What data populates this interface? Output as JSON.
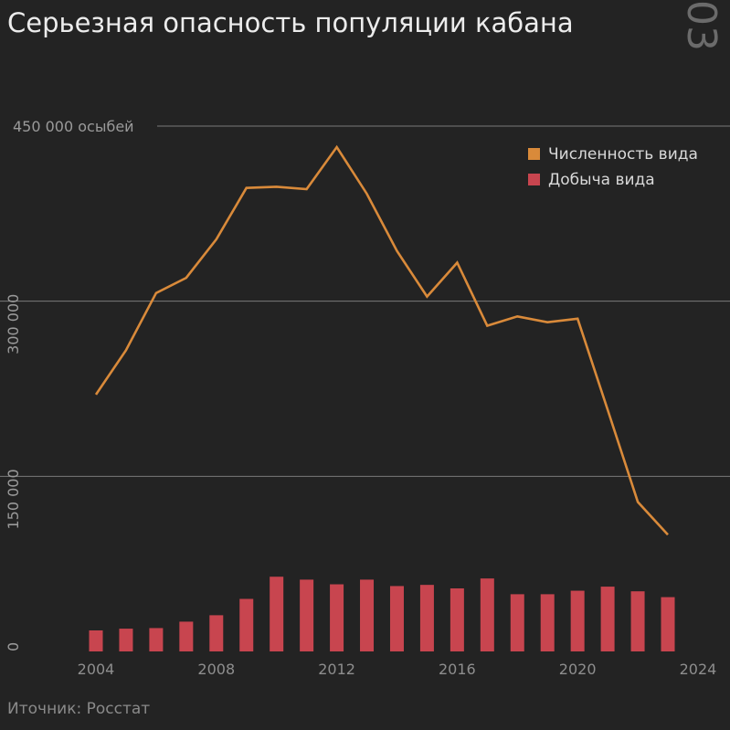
{
  "header": {
    "title": "Серьезная опасность популяции кабана",
    "page_number": "03"
  },
  "footer": {
    "source": "Иточник: Росстат"
  },
  "colors": {
    "background": "#232323",
    "population": "#d98a3a",
    "harvest": "#c8454f"
  },
  "chart_data": {
    "type": "line",
    "title": "Серьезная опасность популяции кабана",
    "x_ticks": [
      "2004",
      "2008",
      "2012",
      "2016",
      "2020",
      "2024"
    ],
    "y_ticks": [
      {
        "value": 0,
        "label": "0"
      },
      {
        "value": 150000,
        "label": "150 000"
      },
      {
        "value": 300000,
        "label": "300 000"
      },
      {
        "value": 450000,
        "label": "450 000 осыбей"
      }
    ],
    "xlim": [
      2003.5,
      2024.5
    ],
    "ylim": [
      0,
      450000
    ],
    "grid": true,
    "legend_position": "top-right",
    "x": [
      2004,
      2005,
      2006,
      2007,
      2008,
      2009,
      2010,
      2011,
      2012,
      2013,
      2014,
      2015,
      2016,
      2017,
      2018,
      2019,
      2020,
      2021,
      2022,
      2023
    ],
    "series": [
      {
        "name": "Численность вида",
        "type": "line",
        "values": [
          220000,
          258000,
          307000,
          320000,
          353000,
          397000,
          398000,
          396000,
          432000,
          392000,
          343000,
          304000,
          333000,
          279000,
          287000,
          282000,
          285000,
          207000,
          128000,
          100000
        ]
      },
      {
        "name": "Добыча вида",
        "type": "bar",
        "values": [
          18000,
          19500,
          20000,
          25500,
          31000,
          45000,
          64000,
          61500,
          57500,
          61500,
          56000,
          57000,
          54000,
          62500,
          49000,
          49000,
          52000,
          55500,
          51500,
          46500
        ]
      }
    ]
  }
}
